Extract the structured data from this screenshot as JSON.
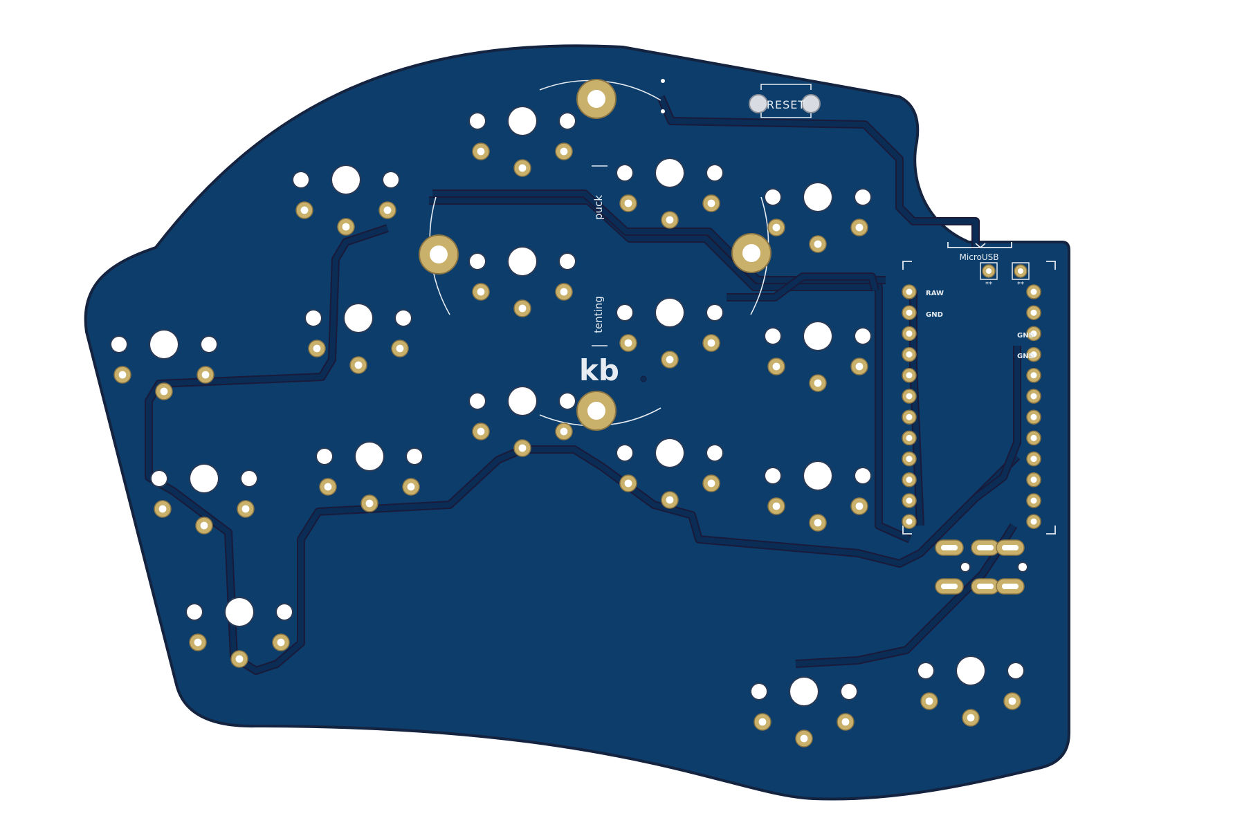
{
  "colors": {
    "background": "#ffffff",
    "board_fill": "#0c3d6b",
    "board_outline": "#142340",
    "trace": "#0a2c55",
    "trace_edge": "#1a1a3a",
    "pad_gold": "#c9b06b",
    "hole_white": "#ffffff",
    "silkscreen": "#e6ecf2"
  },
  "labels": {
    "reset": "RESET",
    "microusb": "MicroUSB",
    "puck": "puck",
    "tenting": "tenting",
    "logo": "kb",
    "raw": "RAW",
    "gnd_left": "GND",
    "gnd_right_1": "GND",
    "gnd_right_2": "GND",
    "jumper_1": "**",
    "jumper_2": "**"
  }
}
